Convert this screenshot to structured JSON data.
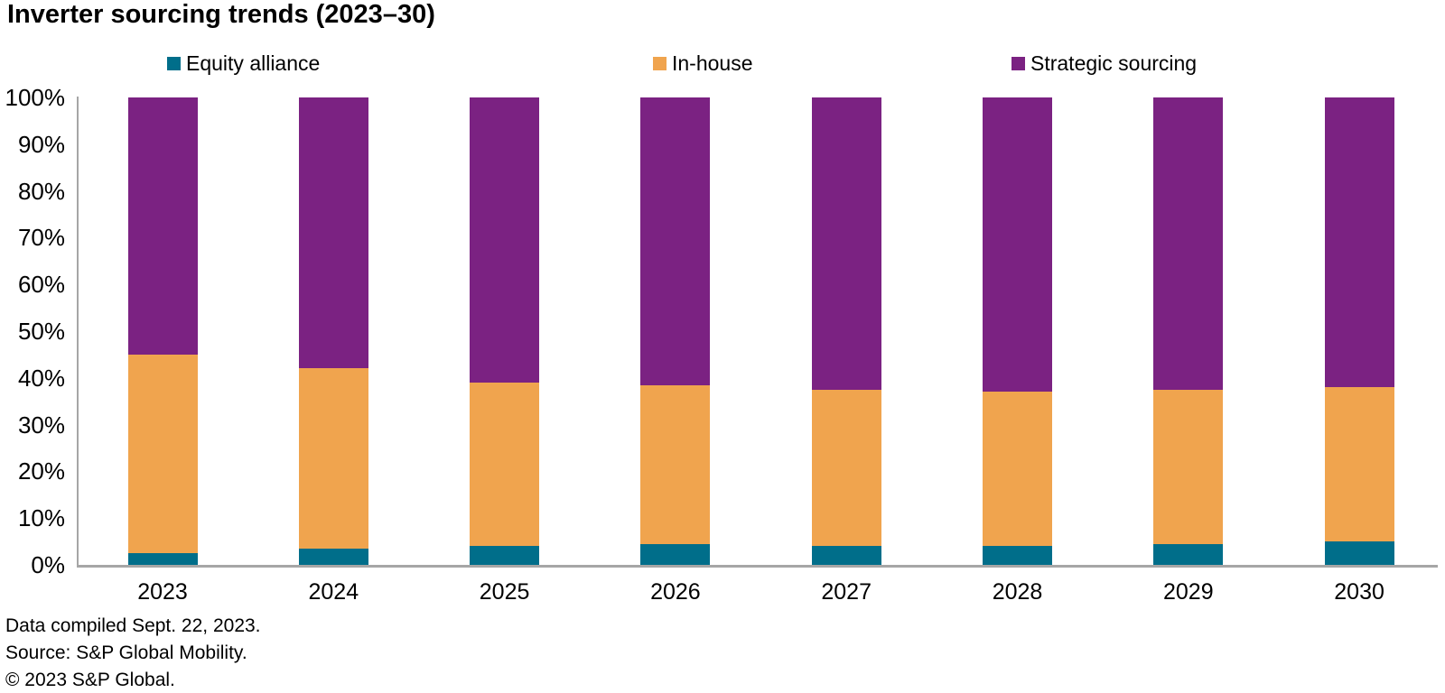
{
  "title": "Inverter sourcing trends (2023–30)",
  "footer": {
    "line1": "Data compiled Sept. 22, 2023.",
    "line2": "Source: S&P Global Mobility.",
    "line3": "© 2023 S&P Global."
  },
  "chart_data": {
    "type": "bar",
    "subtype": "stacked-100pct-column",
    "title": "Inverter sourcing trends (2023–30)",
    "categories": [
      "2023",
      "2024",
      "2025",
      "2026",
      "2027",
      "2028",
      "2029",
      "2030"
    ],
    "series": [
      {
        "name": "Equity alliance",
        "color": "#006e8a",
        "values": [
          2.5,
          3.5,
          4,
          4.5,
          4,
          4,
          4.5,
          5
        ]
      },
      {
        "name": "In-house",
        "color": "#f0a44e",
        "values": [
          42.5,
          38.5,
          35,
          34,
          33.5,
          33,
          33,
          33
        ]
      },
      {
        "name": "Strategic sourcing",
        "color": "#7b2282",
        "values": [
          55,
          58,
          61,
          61.5,
          62.5,
          63,
          62.5,
          62
        ]
      }
    ],
    "ylabel": "",
    "xlabel": "",
    "ylim": [
      0,
      100
    ],
    "ytick_labels": [
      "0%",
      "10%",
      "20%",
      "30%",
      "40%",
      "50%",
      "60%",
      "70%",
      "80%",
      "90%",
      "100%"
    ],
    "grid": "off",
    "legend_position": "top",
    "axis_color": "#a6a6a6"
  }
}
